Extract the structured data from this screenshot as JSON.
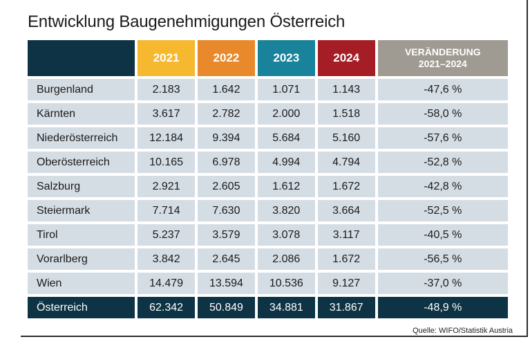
{
  "title": "Entwicklung Baugenehmigungen Österreich",
  "source": "Quelle: WIFO/Statistik Austria",
  "colors": {
    "stub": "#0e3345",
    "y2021": "#f5b82e",
    "y2022": "#e8892b",
    "y2023": "#18839b",
    "y2024": "#a51d25",
    "change": "#a09b92",
    "cell": "#d5dde4"
  },
  "chart_data": {
    "type": "table",
    "title": "Entwicklung Baugenehmigungen Österreich",
    "columns": [
      "2021",
      "2022",
      "2023",
      "2024",
      "VERÄNDERUNG 2021–2024"
    ],
    "header": {
      "y2021": "2021",
      "y2022": "2022",
      "y2023": "2023",
      "y2024": "2024",
      "change_line1": "VERÄNDERUNG",
      "change_line2": "2021–2024"
    },
    "rows": [
      {
        "name": "Burgenland",
        "v2021": "2.183",
        "v2022": "1.642",
        "v2023": "1.071",
        "v2024": "1.143",
        "change": "-47,6 %"
      },
      {
        "name": "Kärnten",
        "v2021": "3.617",
        "v2022": "2.782",
        "v2023": "2.000",
        "v2024": "1.518",
        "change": "-58,0 %"
      },
      {
        "name": "Niederösterreich",
        "v2021": "12.184",
        "v2022": "9.394",
        "v2023": "5.684",
        "v2024": "5.160",
        "change": "-57,6 %"
      },
      {
        "name": "Oberösterreich",
        "v2021": "10.165",
        "v2022": "6.978",
        "v2023": "4.994",
        "v2024": "4.794",
        "change": "-52,8 %"
      },
      {
        "name": "Salzburg",
        "v2021": "2.921",
        "v2022": "2.605",
        "v2023": "1.612",
        "v2024": "1.672",
        "change": "-42,8 %"
      },
      {
        "name": "Steiermark",
        "v2021": "7.714",
        "v2022": "7.630",
        "v2023": "3.820",
        "v2024": "3.664",
        "change": "-52,5 %"
      },
      {
        "name": "Tirol",
        "v2021": "5.237",
        "v2022": "3.579",
        "v2023": "3.078",
        "v2024": "3.117",
        "change": "-40,5 %"
      },
      {
        "name": "Vorarlberg",
        "v2021": "3.842",
        "v2022": "2.645",
        "v2023": "2.086",
        "v2024": "1.672",
        "change": "-56,5 %"
      },
      {
        "name": "Wien",
        "v2021": "14.479",
        "v2022": "13.594",
        "v2023": "10.536",
        "v2024": "9.127",
        "change": "-37,0 %"
      }
    ],
    "total": {
      "name": "Österreich",
      "v2021": "62.342",
      "v2022": "50.849",
      "v2023": "34.881",
      "v2024": "31.867",
      "change": "-48,9 %"
    }
  }
}
